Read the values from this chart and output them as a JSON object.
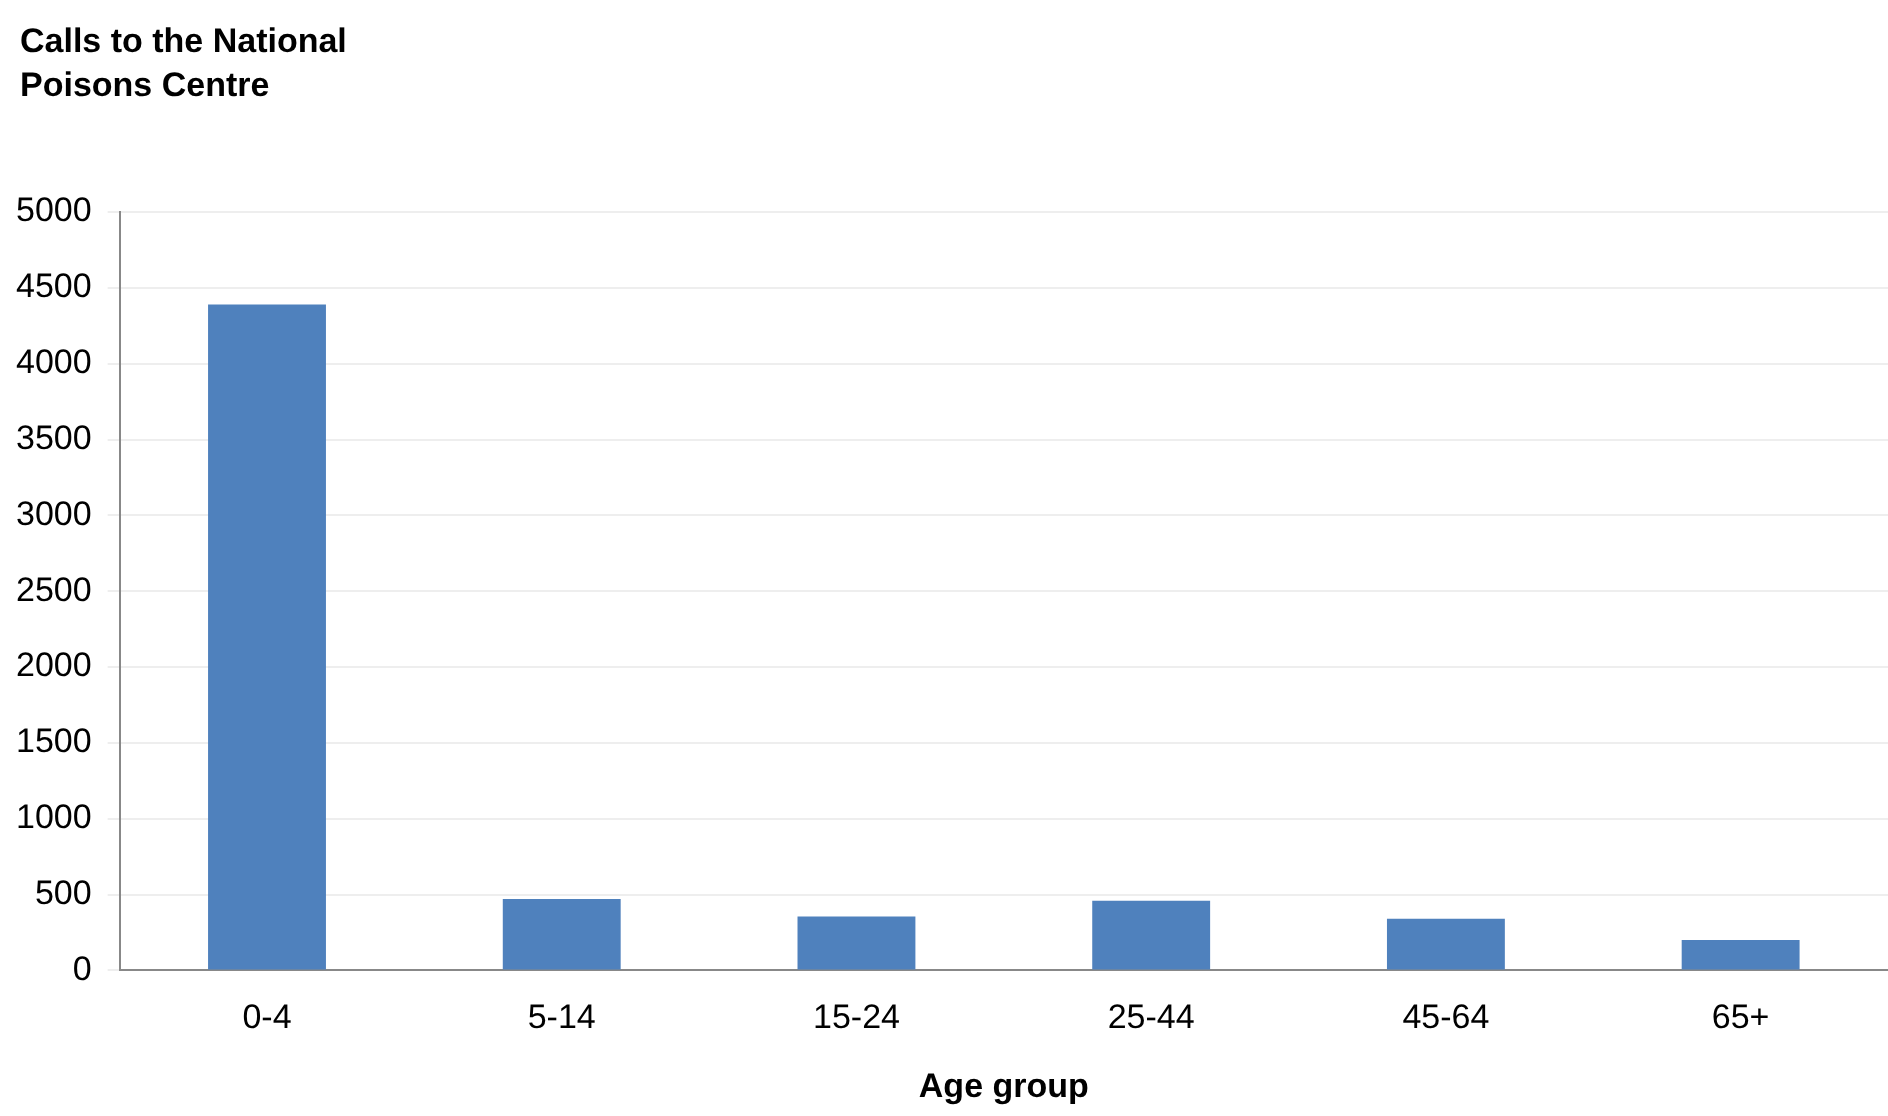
{
  "chart_data": {
    "type": "bar",
    "ylabel": "Calls to the National Poisons Centre",
    "xlabel": "Age group",
    "categories": [
      "0-4",
      "5-14",
      "15-24",
      "25-44",
      "45-64",
      "65+"
    ],
    "values": [
      4390,
      470,
      355,
      460,
      340,
      200
    ],
    "color": "#4f81bd",
    "ylim": [
      0,
      5000
    ],
    "yticks": [
      0,
      500,
      1000,
      1500,
      2000,
      2500,
      3000,
      3500,
      4000,
      4500,
      5000
    ],
    "grid": "y",
    "legend": false
  }
}
